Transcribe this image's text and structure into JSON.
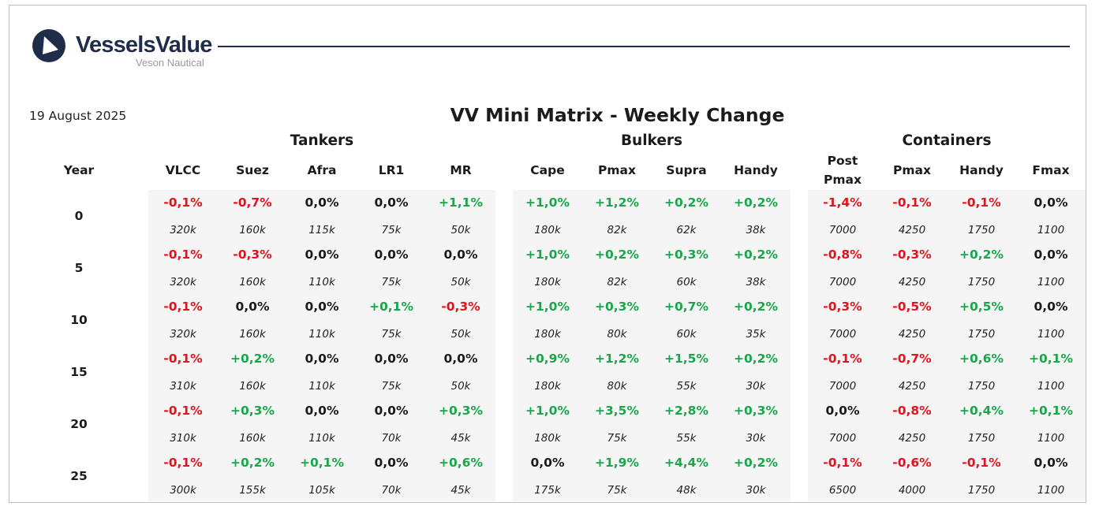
{
  "brand": {
    "name": "VesselsValue",
    "sub": "Veson Nautical",
    "color": "#1f2d4a"
  },
  "date": "19 August 2025",
  "title": "VV Mini Matrix - Weekly Change",
  "year_header": "Year",
  "colors": {
    "negative": "#e0141e",
    "positive": "#1aa64a",
    "neutral": "#1b1b1b",
    "panel": "#f5f5f5"
  },
  "groups": [
    {
      "name": "Tankers",
      "columns": [
        "VLCC",
        "Suez",
        "Afra",
        "LR1",
        "MR"
      ]
    },
    {
      "name": "Bulkers",
      "columns": [
        "Cape",
        "Pmax",
        "Supra",
        "Handy"
      ]
    },
    {
      "name": "Containers",
      "columns": [
        "Post Pmax",
        "Pmax",
        "Handy",
        "Fmax"
      ]
    }
  ],
  "rows": [
    {
      "year": "0",
      "changes": [
        "-0,1%",
        "-0,7%",
        "0,0%",
        "0,0%",
        "+1,1%",
        "+1,0%",
        "+1,2%",
        "+0,2%",
        "+0,2%",
        "-1,4%",
        "-0,1%",
        "-0,1%",
        "0,0%"
      ],
      "sizes": [
        "320k",
        "160k",
        "115k",
        "75k",
        "50k",
        "180k",
        "82k",
        "62k",
        "38k",
        "7000",
        "4250",
        "1750",
        "1100"
      ]
    },
    {
      "year": "5",
      "changes": [
        "-0,1%",
        "-0,3%",
        "0,0%",
        "0,0%",
        "0,0%",
        "+1,0%",
        "+0,2%",
        "+0,3%",
        "+0,2%",
        "-0,8%",
        "-0,3%",
        "+0,2%",
        "0,0%"
      ],
      "sizes": [
        "320k",
        "160k",
        "110k",
        "75k",
        "50k",
        "180k",
        "82k",
        "60k",
        "38k",
        "7000",
        "4250",
        "1750",
        "1100"
      ]
    },
    {
      "year": "10",
      "changes": [
        "-0,1%",
        "0,0%",
        "0,0%",
        "+0,1%",
        "-0,3%",
        "+1,0%",
        "+0,3%",
        "+0,7%",
        "+0,2%",
        "-0,3%",
        "-0,5%",
        "+0,5%",
        "0,0%"
      ],
      "sizes": [
        "320k",
        "160k",
        "110k",
        "75k",
        "50k",
        "180k",
        "80k",
        "60k",
        "35k",
        "7000",
        "4250",
        "1750",
        "1100"
      ]
    },
    {
      "year": "15",
      "changes": [
        "-0,1%",
        "+0,2%",
        "0,0%",
        "0,0%",
        "0,0%",
        "+0,9%",
        "+1,2%",
        "+1,5%",
        "+0,2%",
        "-0,1%",
        "-0,7%",
        "+0,6%",
        "+0,1%"
      ],
      "sizes": [
        "310k",
        "160k",
        "110k",
        "75k",
        "50k",
        "180k",
        "80k",
        "55k",
        "30k",
        "7000",
        "4250",
        "1750",
        "1100"
      ]
    },
    {
      "year": "20",
      "changes": [
        "-0,1%",
        "+0,3%",
        "0,0%",
        "0,0%",
        "+0,3%",
        "+1,0%",
        "+3,5%",
        "+2,8%",
        "+0,3%",
        "0,0%",
        "-0,8%",
        "+0,4%",
        "+0,1%"
      ],
      "sizes": [
        "310k",
        "160k",
        "110k",
        "70k",
        "45k",
        "180k",
        "75k",
        "55k",
        "30k",
        "7000",
        "4250",
        "1750",
        "1100"
      ]
    },
    {
      "year": "25",
      "changes": [
        "-0,1%",
        "+0,2%",
        "+0,1%",
        "0,0%",
        "+0,6%",
        "0,0%",
        "+1,9%",
        "+4,4%",
        "+0,2%",
        "-0,1%",
        "-0,6%",
        "-0,1%",
        "0,0%"
      ],
      "sizes": [
        "300k",
        "155k",
        "105k",
        "70k",
        "45k",
        "175k",
        "75k",
        "48k",
        "30k",
        "6500",
        "4000",
        "1750",
        "1100"
      ]
    }
  ]
}
